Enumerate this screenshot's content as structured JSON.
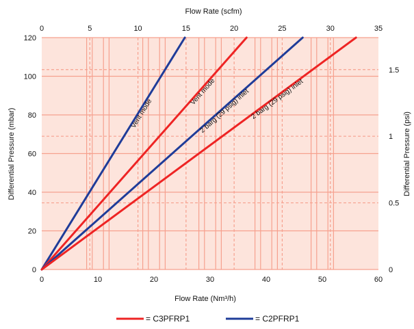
{
  "chart_data": {
    "type": "line",
    "xlabel_bottom": "Flow Rate (Nm³/h)",
    "xlabel_top": "Flow Rate (scfm)",
    "ylabel_left": "Differential Pressure (mbar)",
    "ylabel_right": "Differential Pressure (psi)",
    "xlim": [
      0,
      60
    ],
    "ylim": [
      0,
      120
    ],
    "x_ticks": [
      "0",
      "10",
      "20",
      "30",
      "40",
      "50",
      "60"
    ],
    "y_ticks": [
      "0",
      "20",
      "40",
      "60",
      "80",
      "100",
      "120"
    ],
    "x_top_ticks": [
      "0",
      "5",
      "10",
      "15",
      "20",
      "25",
      "30",
      "35"
    ],
    "y_right_ticks": [
      "0",
      "0.5",
      "1",
      "1.5"
    ],
    "x_top_range": [
      0,
      35
    ],
    "y_right_range": [
      0,
      1.74
    ],
    "grid": true,
    "background": "#fde4dc",
    "grid_color": "#f6a08e",
    "legend_position": "bottom",
    "series": [
      {
        "name": "C2PFRP1",
        "color": "#1f3c99",
        "annotation": "Vent mode",
        "x": [
          0,
          25.5
        ],
        "y": [
          0,
          120
        ]
      },
      {
        "name": "C3PFRP1",
        "color": "#ee2424",
        "annotation": "Vent mode",
        "x": [
          0,
          36.5
        ],
        "y": [
          0,
          120
        ]
      },
      {
        "name": "C2PFRP1",
        "color": "#1f3c99",
        "annotation": "2 barg (29 psig) inlet",
        "x": [
          0,
          46.5
        ],
        "y": [
          0,
          120
        ]
      },
      {
        "name": "C3PFRP1",
        "color": "#ee2424",
        "annotation": "2 barg (29 psig) inlet",
        "x": [
          0,
          56
        ],
        "y": [
          0,
          120
        ]
      }
    ],
    "legend": [
      {
        "label": "= C3PFRP1",
        "color": "#ee2424"
      },
      {
        "label": "= C2PFRP1",
        "color": "#1f3c99"
      }
    ]
  }
}
